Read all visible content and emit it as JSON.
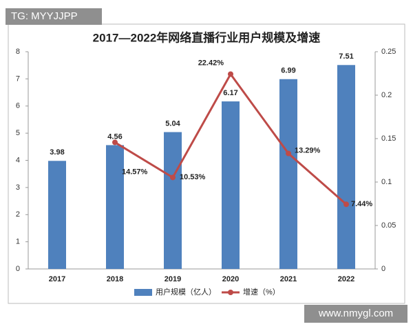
{
  "chart_data": {
    "type": "bar",
    "title": "2017—2022年网络直播行业用户规模及增速",
    "categories": [
      "2017",
      "2018",
      "2019",
      "2020",
      "2021",
      "2022"
    ],
    "series": [
      {
        "name": "用户规模（亿人）",
        "color": "#4f81bd",
        "values": [
          3.98,
          4.56,
          5.04,
          6.17,
          6.99,
          7.51
        ]
      },
      {
        "name": "增速（%）",
        "type": "line",
        "axis": "y2",
        "color": "#be4b48",
        "values": [
          null,
          0.1457,
          0.1053,
          0.2242,
          0.1329,
          0.0744
        ],
        "value_labels": [
          null,
          "14.57%",
          "10.53%",
          "22.42%",
          "13.29%",
          "7.44%"
        ]
      }
    ],
    "ylim": [
      0,
      8
    ],
    "yticks": [
      0,
      1,
      2,
      3,
      4,
      5,
      6,
      7,
      8
    ],
    "y2lim": [
      0,
      0.25
    ],
    "y2ticks": [
      0,
      0.05,
      0.1,
      0.15,
      0.2,
      0.25
    ],
    "legend": "bottom",
    "grid": false
  },
  "watermarks": {
    "top_left": "TG: MYYJJPP",
    "bottom_right": "www.nmygl.com"
  }
}
